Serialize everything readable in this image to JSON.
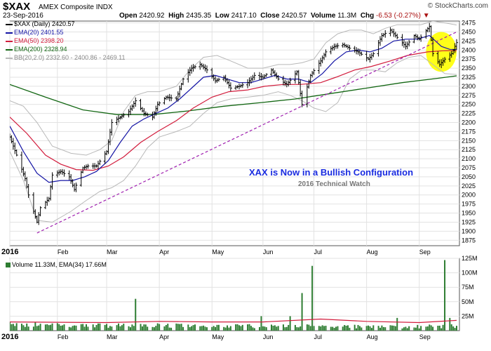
{
  "header": {
    "symbol": "$XAX",
    "exchange": "AMEX Composite INDX",
    "date": "23-Sep-2016",
    "open_label": "Open",
    "open": "2420.92",
    "high_label": "High",
    "high": "2435.35",
    "low_label": "Low",
    "low": "2417.10",
    "close_label": "Close",
    "close": "2420.57",
    "volume_label": "Volume",
    "volume": "11.3M",
    "chg_label": "Chg",
    "chg": "-6.53 (-0.27%)",
    "watermark": "© StockCharts.com"
  },
  "legend": {
    "price": "$XAX (Daily) 2420.57",
    "ema20": "EMA(20) 2401.55",
    "ema50": "EMA(50) 2398.20",
    "ema200": "EMA(200) 2328.94",
    "bb": "BB(20,2.0) 2332.60 - 2400.86 - 2469.11",
    "volume": "Volume 11.33M, EMA(34) 17.66M"
  },
  "annotation": {
    "title": "XAX is Now in a Bullish Configuration",
    "subtitle": "2016 Technical Watch"
  },
  "colors": {
    "ema20": "#1515a5",
    "ema50": "#d21c3c",
    "ema200": "#126612",
    "bb": "#b8b8b8",
    "trendline": "#a020b0",
    "highlight": "#ffff00",
    "annotation": "#1a2ce0",
    "volume_bar": "#2e7d32",
    "volume_ema": "#d21c3c"
  },
  "chart_data": [
    {
      "type": "ohlc",
      "name": "$XAX (Daily)",
      "scale": "linear",
      "grid": true,
      "legend_position": "top-left",
      "ylim": [
        1860,
        2480
      ],
      "y_ticks": [
        1875,
        1900,
        1925,
        1950,
        1975,
        2000,
        2025,
        2050,
        2075,
        2100,
        2125,
        2150,
        2175,
        2200,
        2225,
        2250,
        2275,
        2300,
        2325,
        2350,
        2375,
        2400,
        2425,
        2450,
        2475
      ],
      "x_range": [
        "2016-01-04",
        "2016-09-23"
      ],
      "x_ticks": [
        {
          "label": "2016",
          "date": "2016-01-04",
          "bold": true
        },
        {
          "label": "Feb",
          "date": "2016-02-01"
        },
        {
          "label": "Mar",
          "date": "2016-03-01"
        },
        {
          "label": "Apr",
          "date": "2016-04-01"
        },
        {
          "label": "May",
          "date": "2016-05-02"
        },
        {
          "label": "Jun",
          "date": "2016-06-01"
        },
        {
          "label": "Jul",
          "date": "2016-07-01"
        },
        {
          "label": "Aug",
          "date": "2016-08-01"
        },
        {
          "label": "Sep",
          "date": "2016-09-01"
        }
      ],
      "price_close": [
        [
          "2016-01-04",
          2160
        ],
        [
          "2016-01-08",
          2110
        ],
        [
          "2016-01-13",
          2045
        ],
        [
          "2016-01-15",
          2000
        ],
        [
          "2016-01-20",
          1925
        ],
        [
          "2016-01-22",
          1965
        ],
        [
          "2016-01-27",
          1990
        ],
        [
          "2016-01-29",
          2055
        ],
        [
          "2016-02-03",
          2065
        ],
        [
          "2016-02-08",
          2050
        ],
        [
          "2016-02-11",
          2015
        ],
        [
          "2016-02-16",
          2075
        ],
        [
          "2016-02-19",
          2080
        ],
        [
          "2016-02-24",
          2080
        ],
        [
          "2016-03-01",
          2120
        ],
        [
          "2016-03-04",
          2200
        ],
        [
          "2016-03-09",
          2215
        ],
        [
          "2016-03-14",
          2230
        ],
        [
          "2016-03-18",
          2260
        ],
        [
          "2016-03-23",
          2225
        ],
        [
          "2016-03-28",
          2215
        ],
        [
          "2016-03-31",
          2250
        ],
        [
          "2016-04-05",
          2270
        ],
        [
          "2016-04-11",
          2265
        ],
        [
          "2016-04-15",
          2320
        ],
        [
          "2016-04-20",
          2350
        ],
        [
          "2016-04-25",
          2360
        ],
        [
          "2016-04-29",
          2345
        ],
        [
          "2016-05-04",
          2315
        ],
        [
          "2016-05-09",
          2325
        ],
        [
          "2016-05-13",
          2295
        ],
        [
          "2016-05-18",
          2300
        ],
        [
          "2016-05-23",
          2310
        ],
        [
          "2016-05-27",
          2330
        ],
        [
          "2016-06-01",
          2325
        ],
        [
          "2016-06-06",
          2345
        ],
        [
          "2016-06-10",
          2320
        ],
        [
          "2016-06-15",
          2305
        ],
        [
          "2016-06-21",
          2340
        ],
        [
          "2016-06-24",
          2250
        ],
        [
          "2016-06-29",
          2330
        ],
        [
          "2016-07-05",
          2370
        ],
        [
          "2016-07-08",
          2395
        ],
        [
          "2016-07-13",
          2410
        ],
        [
          "2016-07-18",
          2415
        ],
        [
          "2016-07-22",
          2405
        ],
        [
          "2016-07-27",
          2395
        ],
        [
          "2016-08-02",
          2375
        ],
        [
          "2016-08-05",
          2390
        ],
        [
          "2016-08-10",
          2440
        ],
        [
          "2016-08-15",
          2455
        ],
        [
          "2016-08-19",
          2435
        ],
        [
          "2016-08-24",
          2410
        ],
        [
          "2016-08-29",
          2440
        ],
        [
          "2016-09-01",
          2430
        ],
        [
          "2016-09-07",
          2465
        ],
        [
          "2016-09-09",
          2390
        ],
        [
          "2016-09-13",
          2360
        ],
        [
          "2016-09-16",
          2375
        ],
        [
          "2016-09-20",
          2390
        ],
        [
          "2016-09-23",
          2420.57
        ]
      ],
      "ema20": [
        [
          "2016-01-04",
          2190
        ],
        [
          "2016-01-12",
          2120
        ],
        [
          "2016-01-20",
          2060
        ],
        [
          "2016-01-27",
          2035
        ],
        [
          "2016-02-03",
          2040
        ],
        [
          "2016-02-10",
          2040
        ],
        [
          "2016-02-17",
          2050
        ],
        [
          "2016-02-24",
          2065
        ],
        [
          "2016-03-02",
          2095
        ],
        [
          "2016-03-09",
          2145
        ],
        [
          "2016-03-16",
          2190
        ],
        [
          "2016-03-23",
          2210
        ],
        [
          "2016-03-30",
          2225
        ],
        [
          "2016-04-06",
          2240
        ],
        [
          "2016-04-13",
          2265
        ],
        [
          "2016-04-20",
          2295
        ],
        [
          "2016-04-27",
          2325
        ],
        [
          "2016-05-04",
          2330
        ],
        [
          "2016-05-11",
          2320
        ],
        [
          "2016-05-18",
          2310
        ],
        [
          "2016-05-25",
          2310
        ],
        [
          "2016-06-01",
          2320
        ],
        [
          "2016-06-08",
          2330
        ],
        [
          "2016-06-15",
          2320
        ],
        [
          "2016-06-22",
          2320
        ],
        [
          "2016-06-29",
          2310
        ],
        [
          "2016-07-06",
          2335
        ],
        [
          "2016-07-13",
          2370
        ],
        [
          "2016-07-20",
          2395
        ],
        [
          "2016-07-27",
          2400
        ],
        [
          "2016-08-03",
          2395
        ],
        [
          "2016-08-10",
          2405
        ],
        [
          "2016-08-17",
          2425
        ],
        [
          "2016-08-24",
          2430
        ],
        [
          "2016-08-31",
          2430
        ],
        [
          "2016-09-07",
          2440
        ],
        [
          "2016-09-14",
          2410
        ],
        [
          "2016-09-19",
          2402
        ],
        [
          "2016-09-23",
          2401.55
        ]
      ],
      "ema50": [
        [
          "2016-01-04",
          2215
        ],
        [
          "2016-01-14",
          2170
        ],
        [
          "2016-01-25",
          2110
        ],
        [
          "2016-02-03",
          2085
        ],
        [
          "2016-02-12",
          2070
        ],
        [
          "2016-02-22",
          2068
        ],
        [
          "2016-03-02",
          2080
        ],
        [
          "2016-03-11",
          2105
        ],
        [
          "2016-03-21",
          2145
        ],
        [
          "2016-03-31",
          2175
        ],
        [
          "2016-04-11",
          2205
        ],
        [
          "2016-04-21",
          2240
        ],
        [
          "2016-05-02",
          2270
        ],
        [
          "2016-05-12",
          2285
        ],
        [
          "2016-05-23",
          2290
        ],
        [
          "2016-06-02",
          2300
        ],
        [
          "2016-06-13",
          2305
        ],
        [
          "2016-06-23",
          2305
        ],
        [
          "2016-07-05",
          2310
        ],
        [
          "2016-07-14",
          2325
        ],
        [
          "2016-07-25",
          2345
        ],
        [
          "2016-08-04",
          2355
        ],
        [
          "2016-08-15",
          2370
        ],
        [
          "2016-08-25",
          2385
        ],
        [
          "2016-09-06",
          2395
        ],
        [
          "2016-09-15",
          2398
        ],
        [
          "2016-09-23",
          2398.2
        ]
      ],
      "ema200": [
        [
          "2016-01-04",
          2305
        ],
        [
          "2016-01-25",
          2270
        ],
        [
          "2016-02-16",
          2235
        ],
        [
          "2016-03-07",
          2222
        ],
        [
          "2016-03-28",
          2222
        ],
        [
          "2016-04-18",
          2232
        ],
        [
          "2016-05-09",
          2245
        ],
        [
          "2016-05-31",
          2255
        ],
        [
          "2016-06-20",
          2265
        ],
        [
          "2016-07-11",
          2280
        ],
        [
          "2016-08-01",
          2295
        ],
        [
          "2016-08-22",
          2310
        ],
        [
          "2016-09-12",
          2322
        ],
        [
          "2016-09-23",
          2328.94
        ]
      ],
      "bb_upper": [
        [
          "2016-01-04",
          2260
        ],
        [
          "2016-01-12",
          2245
        ],
        [
          "2016-01-20",
          2200
        ],
        [
          "2016-01-29",
          2135
        ],
        [
          "2016-02-09",
          2115
        ],
        [
          "2016-02-18",
          2110
        ],
        [
          "2016-02-26",
          2125
        ],
        [
          "2016-03-04",
          2150
        ],
        [
          "2016-03-11",
          2230
        ],
        [
          "2016-03-18",
          2275
        ],
        [
          "2016-03-25",
          2285
        ],
        [
          "2016-04-01",
          2285
        ],
        [
          "2016-04-11",
          2300
        ],
        [
          "2016-04-19",
          2345
        ],
        [
          "2016-04-27",
          2380
        ],
        [
          "2016-05-05",
          2385
        ],
        [
          "2016-05-13",
          2370
        ],
        [
          "2016-05-23",
          2350
        ],
        [
          "2016-06-01",
          2350
        ],
        [
          "2016-06-10",
          2360
        ],
        [
          "2016-06-17",
          2360
        ],
        [
          "2016-06-24",
          2365
        ],
        [
          "2016-07-01",
          2375
        ],
        [
          "2016-07-08",
          2420
        ],
        [
          "2016-07-15",
          2445
        ],
        [
          "2016-07-22",
          2455
        ],
        [
          "2016-07-29",
          2455
        ],
        [
          "2016-08-05",
          2445
        ],
        [
          "2016-08-12",
          2460
        ],
        [
          "2016-08-19",
          2470
        ],
        [
          "2016-08-26",
          2470
        ],
        [
          "2016-09-02",
          2470
        ],
        [
          "2016-09-09",
          2480
        ],
        [
          "2016-09-16",
          2475
        ],
        [
          "2016-09-23",
          2469.11
        ]
      ],
      "bb_lower": [
        [
          "2016-01-04",
          2120
        ],
        [
          "2016-01-12",
          2040
        ],
        [
          "2016-01-20",
          1930
        ],
        [
          "2016-01-29",
          1925
        ],
        [
          "2016-02-09",
          1955
        ],
        [
          "2016-02-18",
          1985
        ],
        [
          "2016-02-26",
          2010
        ],
        [
          "2016-03-04",
          2020
        ],
        [
          "2016-03-11",
          2040
        ],
        [
          "2016-03-18",
          2080
        ],
        [
          "2016-03-25",
          2130
        ],
        [
          "2016-04-01",
          2160
        ],
        [
          "2016-04-11",
          2175
        ],
        [
          "2016-04-19",
          2190
        ],
        [
          "2016-04-27",
          2225
        ],
        [
          "2016-05-05",
          2255
        ],
        [
          "2016-05-13",
          2265
        ],
        [
          "2016-05-23",
          2270
        ],
        [
          "2016-06-01",
          2275
        ],
        [
          "2016-06-10",
          2285
        ],
        [
          "2016-06-17",
          2275
        ],
        [
          "2016-06-24",
          2260
        ],
        [
          "2016-07-01",
          2240
        ],
        [
          "2016-07-08",
          2230
        ],
        [
          "2016-07-15",
          2255
        ],
        [
          "2016-07-22",
          2320
        ],
        [
          "2016-07-29",
          2345
        ],
        [
          "2016-08-05",
          2345
        ],
        [
          "2016-08-12",
          2340
        ],
        [
          "2016-08-19",
          2365
        ],
        [
          "2016-08-26",
          2380
        ],
        [
          "2016-09-02",
          2385
        ],
        [
          "2016-09-09",
          2360
        ],
        [
          "2016-09-16",
          2335
        ],
        [
          "2016-09-23",
          2332.6
        ]
      ],
      "trendline": [
        [
          "2016-01-20",
          1895
        ],
        [
          "2016-09-23",
          2450
        ]
      ],
      "highlight_circle": {
        "center": [
          "2016-09-14",
          2395
        ],
        "radius_days": 9,
        "radius_value": 55
      }
    },
    {
      "type": "bar",
      "name": "Volume",
      "ylim": [
        0,
        125
      ],
      "y_unit": "M",
      "y_ticks": [
        {
          "label": "25M",
          "value": 25
        },
        {
          "label": "50M",
          "value": 50
        },
        {
          "label": "75M",
          "value": 75
        },
        {
          "label": "100M",
          "value": 100
        },
        {
          "label": "125M",
          "value": 125
        }
      ],
      "typical_volume": [
        [
          "2016-01-04",
          11
        ],
        [
          "2016-02-01",
          10
        ],
        [
          "2016-03-01",
          9
        ],
        [
          "2016-04-01",
          9
        ],
        [
          "2016-05-02",
          8
        ],
        [
          "2016-06-01",
          8
        ],
        [
          "2016-07-01",
          8
        ],
        [
          "2016-08-01",
          7
        ],
        [
          "2016-09-01",
          7
        ],
        [
          "2016-09-23",
          8
        ]
      ],
      "spikes": [
        [
          "2016-03-18",
          55
        ],
        [
          "2016-05-31",
          25
        ],
        [
          "2016-06-17",
          25
        ],
        [
          "2016-06-24",
          65
        ],
        [
          "2016-06-30",
          112
        ],
        [
          "2016-08-19",
          22
        ],
        [
          "2016-09-16",
          122
        ],
        [
          "2016-09-19",
          22
        ]
      ],
      "ema34": [
        [
          "2016-01-04",
          15
        ],
        [
          "2016-03-01",
          14
        ],
        [
          "2016-04-01",
          16
        ],
        [
          "2016-05-02",
          15
        ],
        [
          "2016-06-01",
          15
        ],
        [
          "2016-07-05",
          20
        ],
        [
          "2016-08-01",
          16
        ],
        [
          "2016-09-01",
          14
        ],
        [
          "2016-09-23",
          17.66
        ]
      ]
    }
  ]
}
